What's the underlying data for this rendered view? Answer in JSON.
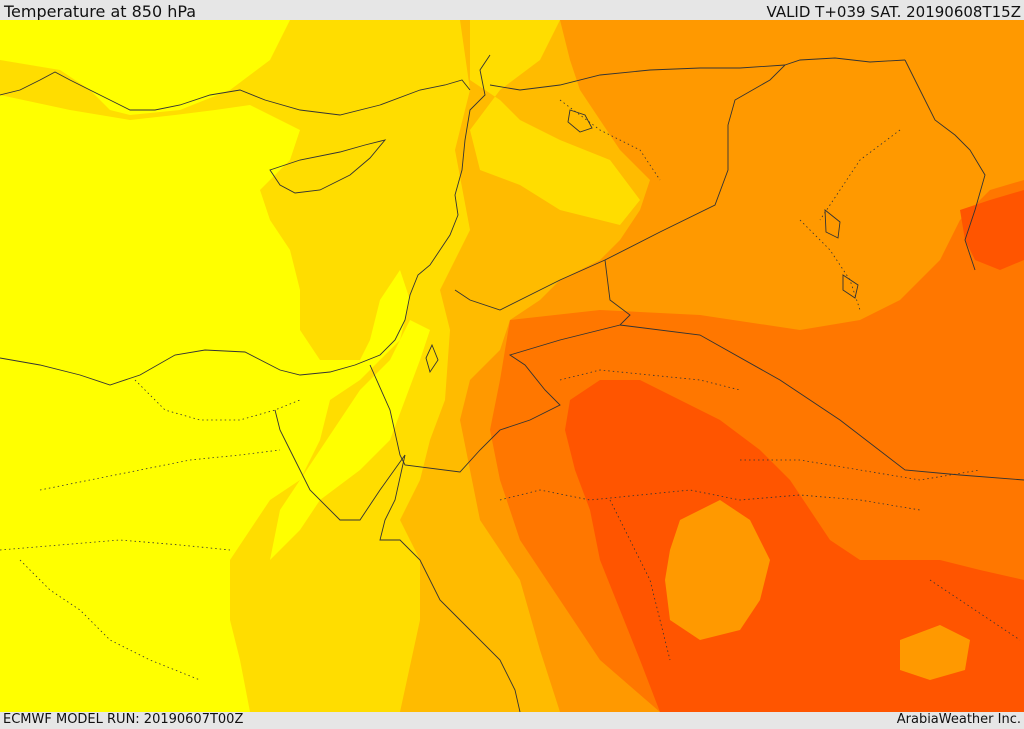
{
  "header": {
    "title": "Temperature at 850 hPa",
    "valid": "VALID T+039 SAT. 20190608T15Z"
  },
  "footer": {
    "model_run": "ECMWF MODEL RUN: 20190607T00Z",
    "brand": "ArabiaWeather Inc."
  },
  "map": {
    "field": "temperature-850hPa",
    "palette": {
      "yellow": "#ffff00",
      "gold": "#ffdd00",
      "light_orange": "#ffbb00",
      "orange": "#ff9900",
      "dark_orange": "#ff7700",
      "red_orange": "#ff5500"
    },
    "boundary_color": "#333333"
  }
}
